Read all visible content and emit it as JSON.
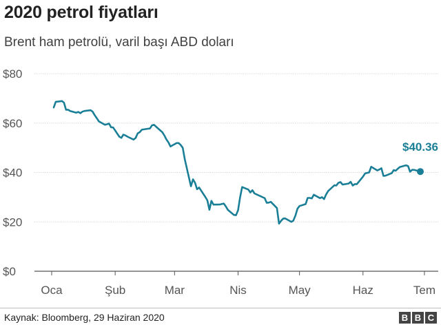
{
  "header": {
    "title": "2020 petrol fiyatları",
    "subtitle": "Brent ham petrolü, varil başı ABD doları"
  },
  "footer": {
    "source": "Kaynak: Bloomberg, 29 Haziran 2020",
    "logo_letters": [
      "B",
      "B",
      "C"
    ]
  },
  "colors": {
    "line": "#1a7f96",
    "grid": "#d8d8d8",
    "axis": "#555555",
    "tick_text": "#555555"
  },
  "chart_data": {
    "type": "line",
    "title": "2020 petrol fiyatları",
    "subtitle": "Brent ham petrolü, varil başı ABD doları",
    "ylim": [
      0,
      80
    ],
    "y_ticks": [
      0,
      20,
      40,
      60,
      80
    ],
    "y_tick_labels": [
      "$0",
      "$20",
      "$40",
      "$60",
      "$80"
    ],
    "x_range": [
      "2020-01-01",
      "2020-06-29"
    ],
    "x_ticks": [
      "2020-01-01",
      "2020-02-01",
      "2020-03-01",
      "2020-04-01",
      "2020-05-01",
      "2020-06-01",
      "2020-07-01"
    ],
    "x_tick_labels": [
      "Oca",
      "Şub",
      "Mar",
      "Nis",
      "May",
      "Haz",
      "Tem"
    ],
    "grid": true,
    "end_label": "$40.36",
    "series": [
      {
        "points": [
          [
            "2020-01-02",
            66.3
          ],
          [
            "2020-01-03",
            68.6
          ],
          [
            "2020-01-06",
            68.9
          ],
          [
            "2020-01-07",
            68.3
          ],
          [
            "2020-01-08",
            65.4
          ],
          [
            "2020-01-09",
            65.4
          ],
          [
            "2020-01-10",
            64.9
          ],
          [
            "2020-01-13",
            64.2
          ],
          [
            "2020-01-14",
            64.5
          ],
          [
            "2020-01-15",
            64.0
          ],
          [
            "2020-01-16",
            64.6
          ],
          [
            "2020-01-17",
            64.9
          ],
          [
            "2020-01-20",
            65.2
          ],
          [
            "2020-01-21",
            64.6
          ],
          [
            "2020-01-22",
            63.2
          ],
          [
            "2020-01-23",
            62.0
          ],
          [
            "2020-01-24",
            60.7
          ],
          [
            "2020-01-27",
            59.3
          ],
          [
            "2020-01-28",
            59.5
          ],
          [
            "2020-01-29",
            59.8
          ],
          [
            "2020-01-30",
            58.3
          ],
          [
            "2020-01-31",
            58.2
          ],
          [
            "2020-02-03",
            54.5
          ],
          [
            "2020-02-04",
            54.0
          ],
          [
            "2020-02-05",
            55.3
          ],
          [
            "2020-02-06",
            55.0
          ],
          [
            "2020-02-07",
            54.5
          ],
          [
            "2020-02-10",
            53.3
          ],
          [
            "2020-02-11",
            54.0
          ],
          [
            "2020-02-12",
            55.8
          ],
          [
            "2020-02-13",
            56.3
          ],
          [
            "2020-02-14",
            57.3
          ],
          [
            "2020-02-17",
            57.7
          ],
          [
            "2020-02-18",
            57.8
          ],
          [
            "2020-02-19",
            59.1
          ],
          [
            "2020-02-20",
            59.3
          ],
          [
            "2020-02-21",
            58.5
          ],
          [
            "2020-02-24",
            56.3
          ],
          [
            "2020-02-25",
            55.0
          ],
          [
            "2020-02-26",
            53.4
          ],
          [
            "2020-02-27",
            52.2
          ],
          [
            "2020-02-28",
            50.5
          ],
          [
            "2020-03-02",
            51.9
          ],
          [
            "2020-03-03",
            51.9
          ],
          [
            "2020-03-04",
            51.1
          ],
          [
            "2020-03-05",
            49.99
          ],
          [
            "2020-03-06",
            45.3
          ],
          [
            "2020-03-09",
            34.4
          ],
          [
            "2020-03-10",
            37.2
          ],
          [
            "2020-03-11",
            35.8
          ],
          [
            "2020-03-12",
            33.2
          ],
          [
            "2020-03-13",
            33.9
          ],
          [
            "2020-03-16",
            30.1
          ],
          [
            "2020-03-17",
            28.7
          ],
          [
            "2020-03-18",
            24.9
          ],
          [
            "2020-03-19",
            28.5
          ],
          [
            "2020-03-20",
            26.98
          ],
          [
            "2020-03-23",
            27.0
          ],
          [
            "2020-03-24",
            27.2
          ],
          [
            "2020-03-25",
            27.4
          ],
          [
            "2020-03-26",
            26.3
          ],
          [
            "2020-03-27",
            24.9
          ],
          [
            "2020-03-30",
            22.8
          ],
          [
            "2020-03-31",
            22.7
          ],
          [
            "2020-04-01",
            24.7
          ],
          [
            "2020-04-02",
            29.9
          ],
          [
            "2020-04-03",
            34.1
          ],
          [
            "2020-04-06",
            33.1
          ],
          [
            "2020-04-07",
            31.9
          ],
          [
            "2020-04-08",
            32.8
          ],
          [
            "2020-04-09",
            31.5
          ],
          [
            "2020-04-14",
            29.6
          ],
          [
            "2020-04-15",
            27.7
          ],
          [
            "2020-04-16",
            27.8
          ],
          [
            "2020-04-17",
            28.1
          ],
          [
            "2020-04-20",
            25.6
          ],
          [
            "2020-04-21",
            19.3
          ],
          [
            "2020-04-22",
            20.4
          ],
          [
            "2020-04-23",
            21.3
          ],
          [
            "2020-04-24",
            21.4
          ],
          [
            "2020-04-27",
            19.99
          ],
          [
            "2020-04-28",
            20.5
          ],
          [
            "2020-04-29",
            22.5
          ],
          [
            "2020-04-30",
            25.3
          ],
          [
            "2020-05-01",
            26.4
          ],
          [
            "2020-05-04",
            27.2
          ],
          [
            "2020-05-05",
            29.7
          ],
          [
            "2020-05-06",
            29.7
          ],
          [
            "2020-05-07",
            29.5
          ],
          [
            "2020-05-08",
            30.97
          ],
          [
            "2020-05-11",
            29.6
          ],
          [
            "2020-05-12",
            29.98
          ],
          [
            "2020-05-13",
            29.2
          ],
          [
            "2020-05-14",
            31.1
          ],
          [
            "2020-05-15",
            32.5
          ],
          [
            "2020-05-18",
            34.8
          ],
          [
            "2020-05-19",
            34.7
          ],
          [
            "2020-05-20",
            35.8
          ],
          [
            "2020-05-21",
            36.1
          ],
          [
            "2020-05-22",
            35.1
          ],
          [
            "2020-05-25",
            35.5
          ],
          [
            "2020-05-26",
            36.2
          ],
          [
            "2020-05-27",
            34.7
          ],
          [
            "2020-05-28",
            35.3
          ],
          [
            "2020-05-29",
            35.3
          ],
          [
            "2020-06-01",
            38.3
          ],
          [
            "2020-06-02",
            39.6
          ],
          [
            "2020-06-03",
            39.8
          ],
          [
            "2020-06-04",
            39.99
          ],
          [
            "2020-06-05",
            42.3
          ],
          [
            "2020-06-08",
            40.8
          ],
          [
            "2020-06-09",
            41.2
          ],
          [
            "2020-06-10",
            41.7
          ],
          [
            "2020-06-11",
            38.6
          ],
          [
            "2020-06-12",
            38.7
          ],
          [
            "2020-06-15",
            39.7
          ],
          [
            "2020-06-16",
            40.96
          ],
          [
            "2020-06-17",
            40.7
          ],
          [
            "2020-06-18",
            41.5
          ],
          [
            "2020-06-19",
            42.2
          ],
          [
            "2020-06-22",
            42.9
          ],
          [
            "2020-06-23",
            42.6
          ],
          [
            "2020-06-24",
            40.3
          ],
          [
            "2020-06-25",
            41.05
          ],
          [
            "2020-06-26",
            41.02
          ],
          [
            "2020-06-29",
            40.36
          ]
        ]
      }
    ]
  }
}
